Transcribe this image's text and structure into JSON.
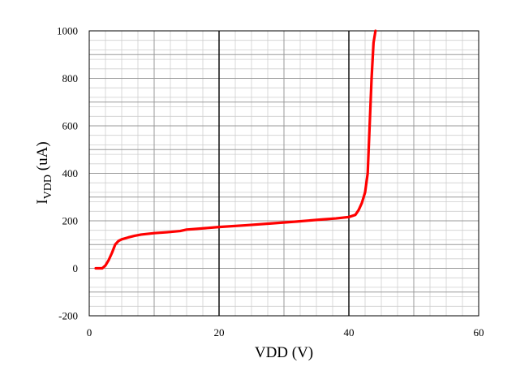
{
  "chart_data": {
    "type": "line",
    "title": "",
    "xlabel": "VDD (V)",
    "ylabel": {
      "main": "I",
      "sub": "VDD",
      "unit": " (uA)"
    },
    "xlim": [
      0,
      60
    ],
    "ylim": [
      -200,
      1000
    ],
    "xticks": [
      0,
      20,
      40,
      60
    ],
    "yticks": [
      -200,
      0,
      200,
      400,
      600,
      800,
      1000
    ],
    "grid": {
      "x_major": 10,
      "x_minor": 4,
      "y_major": 100,
      "y_minor": 40
    },
    "emphasized_x_gridlines": [
      20,
      40
    ],
    "series": [
      {
        "color": "#ff0000",
        "x": [
          1.0,
          2.0,
          2.5,
          3.0,
          3.5,
          4.0,
          4.5,
          5.0,
          6.0,
          7.0,
          8.0,
          10.0,
          12.0,
          14.0,
          15.0,
          16.0,
          20.0,
          24.0,
          28.0,
          32.0,
          36.0,
          38.0,
          40.0,
          41.0,
          41.5,
          42.0,
          42.5,
          42.9,
          43.2,
          43.5,
          43.8,
          44.1
        ],
        "y": [
          0,
          0,
          12,
          35,
          65,
          100,
          115,
          122,
          130,
          137,
          142,
          148,
          152,
          157,
          163,
          165,
          174,
          181,
          189,
          197,
          206,
          210,
          216,
          225,
          245,
          275,
          320,
          400,
          600,
          800,
          950,
          1000
        ]
      }
    ]
  }
}
